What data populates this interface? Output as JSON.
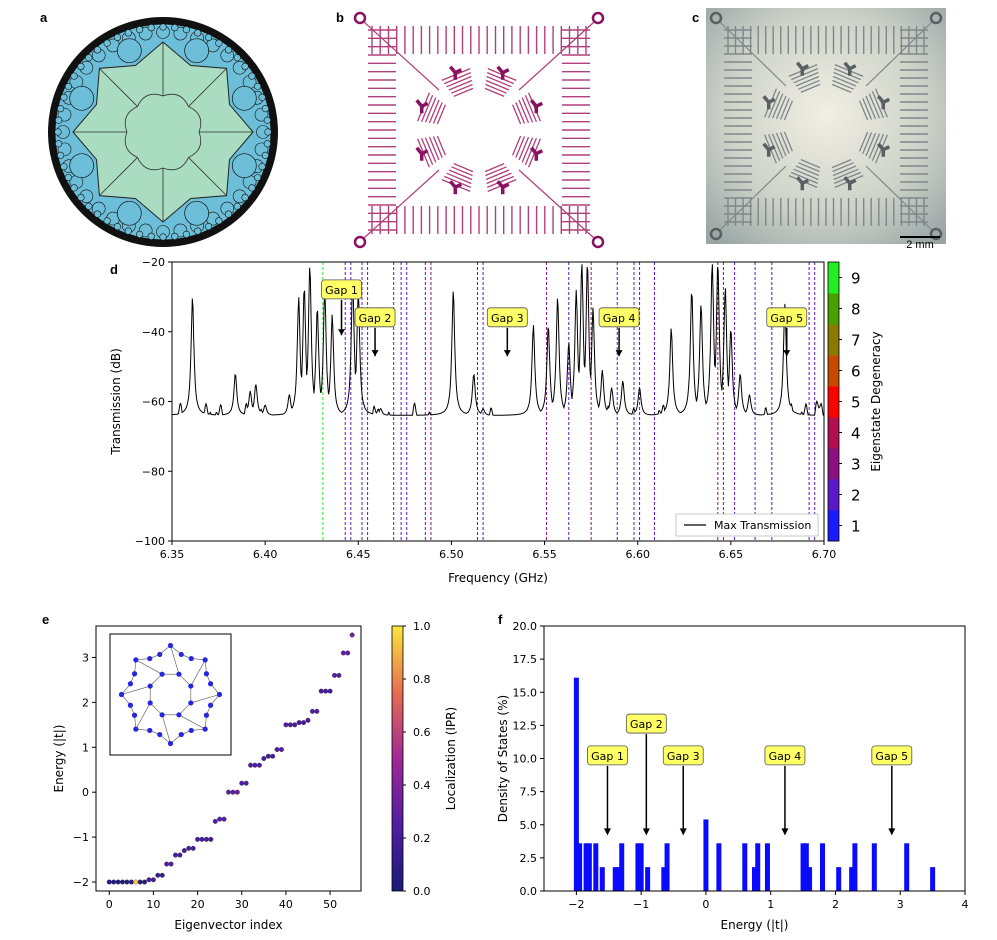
{
  "panel_labels": {
    "a": "a",
    "b": "b",
    "c": "c",
    "d": "d",
    "e": "e",
    "f": "f"
  },
  "scale_bar": "2 mm",
  "chart_data": [
    {
      "id": "d",
      "type": "line",
      "xlabel": "Frequency (GHz)",
      "ylabel": "Transmission (dB)",
      "xlim": [
        6.35,
        6.7
      ],
      "ylim": [
        -100,
        -20
      ],
      "xticks": [
        "6.35",
        "6.40",
        "6.45",
        "6.50",
        "6.55",
        "6.60",
        "6.65",
        "6.70"
      ],
      "yticks": [
        "-100",
        "-80",
        "-60",
        "-40",
        "-20"
      ],
      "legend": {
        "label": "Max Transmission",
        "position": "lower-right"
      },
      "baseline": -64,
      "peaks": [
        {
          "x": 6.361,
          "y": -30
        },
        {
          "x": 6.384,
          "y": -52
        },
        {
          "x": 6.392,
          "y": -57
        },
        {
          "x": 6.395,
          "y": -55
        },
        {
          "x": 6.4,
          "y": -61
        },
        {
          "x": 6.413,
          "y": -58
        },
        {
          "x": 6.418,
          "y": -30
        },
        {
          "x": 6.421,
          "y": -27
        },
        {
          "x": 6.424,
          "y": -21
        },
        {
          "x": 6.428,
          "y": -33
        },
        {
          "x": 6.432,
          "y": -28
        },
        {
          "x": 6.436,
          "y": -35
        },
        {
          "x": 6.447,
          "y": -24
        },
        {
          "x": 6.45,
          "y": -28
        },
        {
          "x": 6.462,
          "y": -62
        },
        {
          "x": 6.501,
          "y": -28
        },
        {
          "x": 6.512,
          "y": -52
        },
        {
          "x": 6.517,
          "y": -62
        },
        {
          "x": 6.544,
          "y": -38
        },
        {
          "x": 6.552,
          "y": -38
        },
        {
          "x": 6.557,
          "y": -30
        },
        {
          "x": 6.563,
          "y": -43
        },
        {
          "x": 6.567,
          "y": -28
        },
        {
          "x": 6.57,
          "y": -20
        },
        {
          "x": 6.573,
          "y": -20
        },
        {
          "x": 6.576,
          "y": -33
        },
        {
          "x": 6.581,
          "y": -51
        },
        {
          "x": 6.586,
          "y": -56
        },
        {
          "x": 6.592,
          "y": -54
        },
        {
          "x": 6.601,
          "y": -56
        },
        {
          "x": 6.618,
          "y": -39
        },
        {
          "x": 6.629,
          "y": -28
        },
        {
          "x": 6.634,
          "y": -32
        },
        {
          "x": 6.64,
          "y": -20
        },
        {
          "x": 6.643,
          "y": -20
        },
        {
          "x": 6.647,
          "y": -27
        },
        {
          "x": 6.65,
          "y": -39
        },
        {
          "x": 6.655,
          "y": -52
        },
        {
          "x": 6.66,
          "y": -58
        },
        {
          "x": 6.679,
          "y": -32
        }
      ],
      "dips": [
        {
          "x": 6.382,
          "y": -68
        },
        {
          "x": 6.404,
          "y": -70
        },
        {
          "x": 6.409,
          "y": -83
        },
        {
          "x": 6.427,
          "y": -70
        },
        {
          "x": 6.44,
          "y": -74
        },
        {
          "x": 6.466,
          "y": -66
        },
        {
          "x": 6.472,
          "y": -72
        },
        {
          "x": 6.488,
          "y": -66
        },
        {
          "x": 6.497,
          "y": -72
        },
        {
          "x": 6.512,
          "y": -76
        },
        {
          "x": 6.527,
          "y": -70
        },
        {
          "x": 6.538,
          "y": -73
        },
        {
          "x": 6.559,
          "y": -72
        },
        {
          "x": 6.605,
          "y": -68
        },
        {
          "x": 6.623,
          "y": -70
        },
        {
          "x": 6.664,
          "y": -70
        },
        {
          "x": 6.675,
          "y": -70
        },
        {
          "x": 6.699,
          "y": -62
        }
      ],
      "degenerate_lines": [
        {
          "x": 6.431,
          "deg": 9
        },
        {
          "x": 6.443,
          "deg": 2
        },
        {
          "x": 6.446,
          "deg": 2
        },
        {
          "x": 6.452,
          "deg": 2
        },
        {
          "x": 6.455,
          "deg": 2
        },
        {
          "x": 6.469,
          "deg": 2
        },
        {
          "x": 6.473,
          "deg": 2
        },
        {
          "x": 6.476,
          "deg": 2
        },
        {
          "x": 6.486,
          "deg": 2
        },
        {
          "x": 6.489,
          "deg": 3
        },
        {
          "x": 6.514,
          "deg": 2
        },
        {
          "x": 6.517,
          "deg": 2
        },
        {
          "x": 6.551,
          "deg": 3
        },
        {
          "x": 6.563,
          "deg": 2
        },
        {
          "x": 6.575,
          "deg": 3
        },
        {
          "x": 6.589,
          "deg": 2
        },
        {
          "x": 6.598,
          "deg": 2
        },
        {
          "x": 6.601,
          "deg": 2
        },
        {
          "x": 6.609,
          "deg": 2
        },
        {
          "x": 6.643,
          "deg": 3
        },
        {
          "x": 6.646,
          "deg": 3
        },
        {
          "x": 6.652,
          "deg": 2
        },
        {
          "x": 6.663,
          "deg": 2
        },
        {
          "x": 6.672,
          "deg": 2
        },
        {
          "x": 6.692,
          "deg": 2
        },
        {
          "x": 6.695,
          "deg": 2
        }
      ],
      "gap_labels": [
        {
          "label": "Gap 1",
          "x": 6.441,
          "y": -28,
          "arrow_to": -41
        },
        {
          "label": "Gap 2",
          "x": 6.459,
          "y": -36,
          "arrow_to": -47
        },
        {
          "label": "Gap 3",
          "x": 6.53,
          "y": -36,
          "arrow_to": -47
        },
        {
          "label": "Gap 4",
          "x": 6.59,
          "y": -36,
          "arrow_to": -47
        },
        {
          "label": "Gap 5",
          "x": 6.68,
          "y": -36,
          "arrow_to": -47
        }
      ],
      "colorbar": {
        "label": "Eigenstate Degeneracy",
        "ticks": [
          "1",
          "2",
          "3",
          "4",
          "5",
          "6",
          "7",
          "8",
          "9"
        ],
        "colors": [
          "#1a1aff",
          "#5a18c8",
          "#8a1080",
          "#b01050",
          "#ff0000",
          "#c84a00",
          "#8a7a00",
          "#4aa000",
          "#22ee22"
        ]
      }
    },
    {
      "id": "e",
      "type": "scatter",
      "xlabel": "Eigenvector index",
      "ylabel": "Energy (|t|)",
      "xlim": [
        -3,
        57
      ],
      "ylim": [
        -2.2,
        3.7
      ],
      "xticks": [
        "0",
        "10",
        "20",
        "30",
        "40",
        "50"
      ],
      "yticks": [
        "-2",
        "-1",
        "0",
        "1",
        "2",
        "3"
      ],
      "energies": [
        -2.0,
        -2.0,
        -2.0,
        -2.0,
        -2.0,
        -2.0,
        -2.0,
        -2.0,
        -2.0,
        -1.95,
        -1.95,
        -1.85,
        -1.85,
        -1.6,
        -1.6,
        -1.4,
        -1.4,
        -1.3,
        -1.25,
        -1.25,
        -1.05,
        -1.05,
        -1.05,
        -1.05,
        -0.65,
        -0.6,
        -0.6,
        0.0,
        0.0,
        0.0,
        0.2,
        0.2,
        0.6,
        0.6,
        0.6,
        0.75,
        0.8,
        0.8,
        0.95,
        0.95,
        1.5,
        1.5,
        1.5,
        1.55,
        1.55,
        1.6,
        1.8,
        1.8,
        2.25,
        2.25,
        2.25,
        2.6,
        2.6,
        3.1,
        3.1,
        3.5
      ],
      "ipr": [
        0.05,
        0.05,
        0.05,
        0.05,
        0.05,
        0.05,
        0.95,
        0.05,
        0.05,
        0.2,
        0.2,
        0.15,
        0.15,
        0.25,
        0.25,
        0.2,
        0.2,
        0.2,
        0.2,
        0.2,
        0.2,
        0.2,
        0.2,
        0.2,
        0.25,
        0.25,
        0.25,
        0.3,
        0.3,
        0.3,
        0.25,
        0.25,
        0.25,
        0.25,
        0.25,
        0.2,
        0.2,
        0.2,
        0.25,
        0.25,
        0.25,
        0.25,
        0.25,
        0.2,
        0.2,
        0.2,
        0.25,
        0.25,
        0.2,
        0.2,
        0.2,
        0.25,
        0.25,
        0.3,
        0.3,
        0.35
      ],
      "colorbar": {
        "label": "Localization (IPR)",
        "ticks": [
          "0.0",
          "0.2",
          "0.4",
          "0.6",
          "0.8",
          "1.0"
        ]
      }
    },
    {
      "id": "f",
      "type": "bar",
      "xlabel": "Energy (|t|)",
      "ylabel": "Density of States (%)",
      "xlim": [
        -2.5,
        4
      ],
      "ylim": [
        0,
        20
      ],
      "xticks": [
        "-2",
        "-1",
        "0",
        "1",
        "2",
        "3",
        "4"
      ],
      "yticks": [
        "0.0",
        "2.5",
        "5.0",
        "7.5",
        "10.0",
        "12.5",
        "15.0",
        "17.5",
        "20.0"
      ],
      "bars": [
        {
          "x": -2.0,
          "y": 16.1
        },
        {
          "x": -1.95,
          "y": 3.6
        },
        {
          "x": -1.85,
          "y": 3.6
        },
        {
          "x": -1.8,
          "y": 3.6
        },
        {
          "x": -1.7,
          "y": 3.6
        },
        {
          "x": -1.6,
          "y": 1.8
        },
        {
          "x": -1.4,
          "y": 1.8
        },
        {
          "x": -1.35,
          "y": 1.8
        },
        {
          "x": -1.3,
          "y": 3.6
        },
        {
          "x": -1.05,
          "y": 3.6
        },
        {
          "x": -1.0,
          "y": 3.6
        },
        {
          "x": -0.9,
          "y": 1.8
        },
        {
          "x": -0.65,
          "y": 1.8
        },
        {
          "x": -0.6,
          "y": 3.6
        },
        {
          "x": 0.0,
          "y": 5.4
        },
        {
          "x": 0.2,
          "y": 3.6
        },
        {
          "x": 0.6,
          "y": 3.6
        },
        {
          "x": 0.75,
          "y": 1.8
        },
        {
          "x": 0.8,
          "y": 3.6
        },
        {
          "x": 0.95,
          "y": 3.6
        },
        {
          "x": 1.5,
          "y": 3.6
        },
        {
          "x": 1.55,
          "y": 3.6
        },
        {
          "x": 1.6,
          "y": 1.8
        },
        {
          "x": 1.8,
          "y": 3.6
        },
        {
          "x": 2.05,
          "y": 1.8
        },
        {
          "x": 2.25,
          "y": 1.8
        },
        {
          "x": 2.3,
          "y": 3.6
        },
        {
          "x": 2.6,
          "y": 3.6
        },
        {
          "x": 3.1,
          "y": 3.6
        },
        {
          "x": 3.5,
          "y": 1.8
        }
      ],
      "gap_labels": [
        {
          "label": "Gap 1",
          "x": -1.52,
          "y": 10.2,
          "arrow_to": 4.2
        },
        {
          "label": "Gap 2",
          "x": -0.92,
          "y": 12.6,
          "arrow_to": 4.2
        },
        {
          "label": "Gap 3",
          "x": -0.35,
          "y": 10.2,
          "arrow_to": 4.2
        },
        {
          "label": "Gap 4",
          "x": 1.22,
          "y": 10.2,
          "arrow_to": 4.2
        },
        {
          "label": "Gap 5",
          "x": 2.87,
          "y": 10.2,
          "arrow_to": 4.2
        }
      ]
    }
  ]
}
